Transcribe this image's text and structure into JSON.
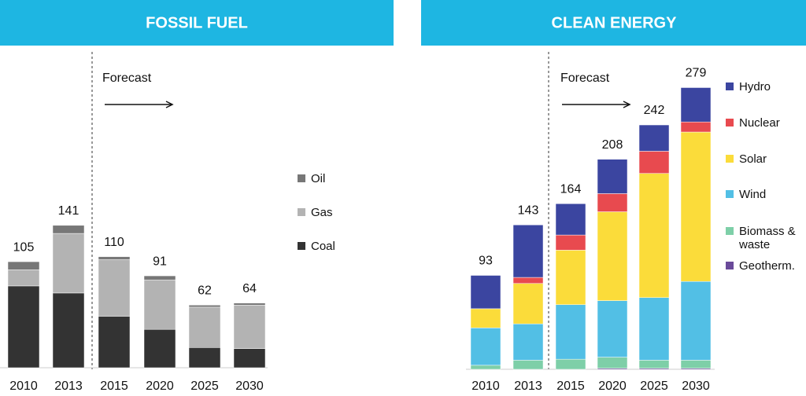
{
  "chart_data": [
    {
      "type": "stacked-bar",
      "title": "FOSSIL FUEL",
      "annotation": "Forecast",
      "categories": [
        "2010",
        "2013",
        "2015",
        "2020",
        "2025",
        "2030"
      ],
      "totals": [
        105,
        141,
        110,
        91,
        62,
        64
      ],
      "series": [
        {
          "name": "Coal",
          "color": "#333333",
          "values": [
            81,
            74,
            51,
            38,
            20,
            19
          ]
        },
        {
          "name": "Gas",
          "color": "#b3b3b3",
          "values": [
            16,
            59,
            56,
            49,
            40,
            43
          ]
        },
        {
          "name": "Oil",
          "color": "#777777",
          "values": [
            8,
            8,
            3,
            4,
            2,
            2
          ]
        }
      ]
    },
    {
      "type": "stacked-bar",
      "title": "CLEAN ENERGY",
      "annotation": "Forecast",
      "categories": [
        "2010",
        "2013",
        "2015",
        "2020",
        "2025",
        "2030"
      ],
      "totals": [
        93,
        143,
        164,
        208,
        242,
        279
      ],
      "series": [
        {
          "name": "Geotherm.",
          "color": "#6a4a9a",
          "values": [
            0,
            0,
            0,
            1,
            1,
            1
          ]
        },
        {
          "name": "Biomass & waste",
          "color": "#7ecfa8",
          "values": [
            4,
            9,
            10,
            11,
            8,
            8
          ]
        },
        {
          "name": "Wind",
          "color": "#52bfe5",
          "values": [
            37,
            36,
            54,
            56,
            62,
            78
          ]
        },
        {
          "name": "Solar",
          "color": "#fbdc3a",
          "values": [
            19,
            40,
            54,
            88,
            123,
            148
          ]
        },
        {
          "name": "Nuclear",
          "color": "#e84a4f",
          "values": [
            0,
            6,
            15,
            18,
            22,
            10
          ]
        },
        {
          "name": "Hydro",
          "color": "#3b45a0",
          "values": [
            33,
            52,
            31,
            34,
            26,
            34
          ]
        }
      ]
    }
  ]
}
